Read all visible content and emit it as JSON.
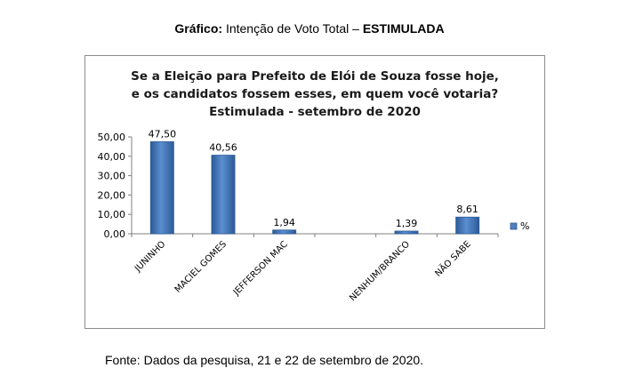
{
  "heading": {
    "prefix": "Gráfico:",
    "text": " Intenção de Voto Total – ",
    "suffix": "ESTIMULADA"
  },
  "footer": "Fonte: Dados da pesquisa, 21 e 22 de setembro de 2020.",
  "chart_data": {
    "type": "bar",
    "title_lines": [
      "Se a Eleição para Prefeito de Elói de Souza fosse hoje,",
      "e os candidatos fossem esses, em quem você votaria?",
      "Estimulada - setembro de 2020"
    ],
    "categories": [
      "JUNINHO",
      "MACIEL GOMES",
      "JEFFERSON MAC",
      "",
      "NENHUM/BRANCO",
      "NÃO SABE"
    ],
    "series": [
      {
        "name": "%",
        "values": [
          47.5,
          40.56,
          1.94,
          null,
          1.39,
          8.61
        ]
      }
    ],
    "data_labels": [
      "47,50",
      "40,56",
      "1,94",
      "",
      "1,39",
      "8,61"
    ],
    "yticks": [
      "0,00",
      "10,00",
      "20,00",
      "30,00",
      "40,00",
      "50,00"
    ],
    "ylim": [
      0,
      50
    ],
    "grid": false,
    "legend": "right",
    "bar_color": "#4f81bd",
    "bar_color_dark": "#2c5a96"
  }
}
